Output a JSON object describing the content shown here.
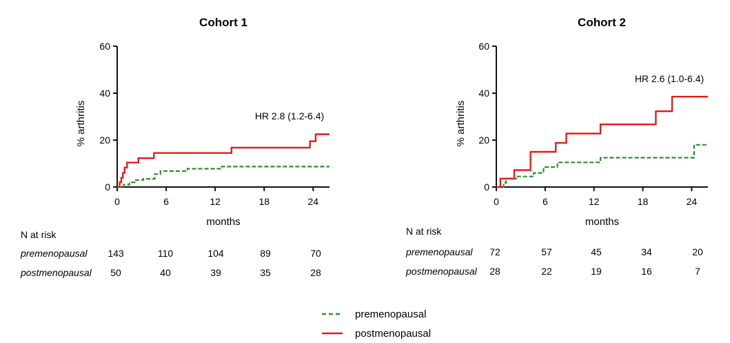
{
  "chart_data": [
    {
      "type": "line",
      "title": "Cohort 1",
      "xlabel": "months",
      "ylabel": "% arthritis",
      "xlim": [
        0,
        26
      ],
      "ylim": [
        0,
        60
      ],
      "xticks": [
        0,
        6,
        12,
        18,
        24
      ],
      "yticks": [
        0,
        20,
        40,
        60
      ],
      "annotation": "HR 2.8 (1.2-6.4)",
      "series": [
        {
          "name": "premenopausal",
          "color": "#2e8b2e",
          "style": "dashed",
          "points": [
            [
              0,
              0
            ],
            [
              0.8,
              0
            ],
            [
              0.8,
              1
            ],
            [
              1.5,
              1
            ],
            [
              1.5,
              2
            ],
            [
              2.3,
              2
            ],
            [
              2.3,
              3
            ],
            [
              3.2,
              3
            ],
            [
              3.2,
              3.5
            ],
            [
              4.6,
              3.5
            ],
            [
              4.6,
              5.5
            ],
            [
              5.3,
              5.5
            ],
            [
              5.3,
              6.8
            ],
            [
              8.6,
              6.8
            ],
            [
              8.6,
              7.8
            ],
            [
              12.8,
              7.8
            ],
            [
              12.8,
              8.7
            ],
            [
              26,
              8.7
            ]
          ]
        },
        {
          "name": "postmenopausal",
          "color": "#e41a1a",
          "style": "solid",
          "points": [
            [
              0,
              0
            ],
            [
              0.3,
              0
            ],
            [
              0.3,
              2
            ],
            [
              0.5,
              2
            ],
            [
              0.5,
              4
            ],
            [
              0.7,
              4
            ],
            [
              0.7,
              6
            ],
            [
              0.9,
              6
            ],
            [
              0.9,
              8.3
            ],
            [
              1.2,
              8.3
            ],
            [
              1.2,
              10.4
            ],
            [
              2.6,
              10.4
            ],
            [
              2.6,
              12.3
            ],
            [
              4.5,
              12.3
            ],
            [
              4.5,
              14.5
            ],
            [
              14,
              14.5
            ],
            [
              14,
              16.8
            ],
            [
              23.6,
              16.8
            ],
            [
              23.6,
              19.5
            ],
            [
              24.3,
              19.5
            ],
            [
              24.3,
              22.5
            ],
            [
              26,
              22.5
            ]
          ]
        }
      ],
      "risk_table": {
        "header": "N at risk",
        "times": [
          0,
          6,
          12,
          18,
          24
        ],
        "rows": [
          {
            "group": "premenopausal",
            "values": [
              "143",
              "110",
              "104",
              "89",
              "70"
            ]
          },
          {
            "group": "postmenopausal",
            "values": [
              "50",
              "40",
              "39",
              "35",
              "28"
            ]
          }
        ]
      }
    },
    {
      "type": "line",
      "title": "Cohort 2",
      "xlabel": "months",
      "ylabel": "% arthritis",
      "xlim": [
        0,
        26
      ],
      "ylim": [
        0,
        60
      ],
      "xticks": [
        0,
        6,
        12,
        18,
        24
      ],
      "yticks": [
        0,
        20,
        40,
        60
      ],
      "annotation": "HR 2.6 (1.0-6.4)",
      "series": [
        {
          "name": "premenopausal",
          "color": "#2e8b2e",
          "style": "dashed",
          "points": [
            [
              0,
              0
            ],
            [
              0.9,
              0
            ],
            [
              0.9,
              1.8
            ],
            [
              1.2,
              1.8
            ],
            [
              1.2,
              3.6
            ],
            [
              2.5,
              3.6
            ],
            [
              2.5,
              4.5
            ],
            [
              4.6,
              4.5
            ],
            [
              4.6,
              6
            ],
            [
              5.8,
              6
            ],
            [
              5.8,
              8.5
            ],
            [
              7.5,
              8.5
            ],
            [
              7.5,
              10.5
            ],
            [
              12.8,
              10.5
            ],
            [
              12.8,
              12.5
            ],
            [
              24.3,
              12.5
            ],
            [
              24.3,
              18
            ],
            [
              26,
              18
            ]
          ]
        },
        {
          "name": "postmenopausal",
          "color": "#e41a1a",
          "style": "solid",
          "points": [
            [
              0,
              0
            ],
            [
              0.5,
              0
            ],
            [
              0.5,
              3.6
            ],
            [
              2.2,
              3.6
            ],
            [
              2.2,
              7.2
            ],
            [
              4.2,
              7.2
            ],
            [
              4.2,
              15
            ],
            [
              7.3,
              15
            ],
            [
              7.3,
              18.8
            ],
            [
              8.6,
              18.8
            ],
            [
              8.6,
              22.8
            ],
            [
              12.8,
              22.8
            ],
            [
              12.8,
              26.7
            ],
            [
              19.6,
              26.7
            ],
            [
              19.6,
              32.3
            ],
            [
              21.6,
              32.3
            ],
            [
              21.6,
              38.5
            ],
            [
              26,
              38.5
            ]
          ]
        }
      ],
      "risk_table": {
        "header": "N at risk",
        "times": [
          0,
          6,
          12,
          18,
          24
        ],
        "rows": [
          {
            "group": "premenopausal",
            "values": [
              "72",
              "57",
              "45",
              "34",
              "20"
            ]
          },
          {
            "group": "postmenopausal",
            "values": [
              "28",
              "22",
              "19",
              "16",
              "7"
            ]
          }
        ]
      }
    }
  ],
  "legend": [
    {
      "label": "premenopausal",
      "color": "#2e8b2e",
      "style": "dashed"
    },
    {
      "label": "postmenopausal",
      "color": "#e41a1a",
      "style": "solid"
    }
  ]
}
